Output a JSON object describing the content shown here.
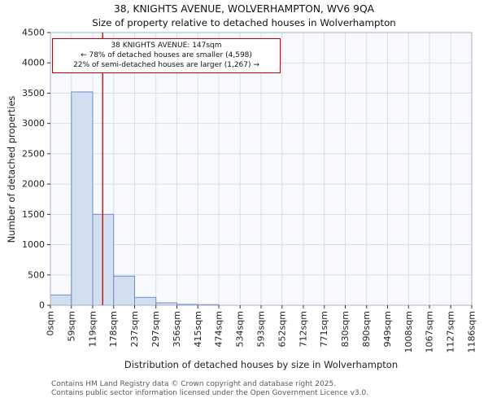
{
  "title_line1": "38, KNIGHTS AVENUE, WOLVERHAMPTON, WV6 9QA",
  "title_line2": "Size of property relative to detached houses in Wolverhampton",
  "annotation": {
    "line1": "38 KNIGHTS AVENUE: 147sqm",
    "line2": "← 78% of detached houses are smaller (4,598)",
    "line3": "22% of semi-detached houses are larger (1,267) →"
  },
  "footer_line1": "Contains HM Land Registry data © Crown copyright and database right 2025.",
  "footer_line2": "Contains public sector information licensed under the Open Government Licence v3.0.",
  "chart_data": {
    "type": "bar",
    "title": "38, KNIGHTS AVENUE, WOLVERHAMPTON, WV6 9QA — Size of property relative to detached houses in Wolverhampton",
    "xlabel": "Distribution of detached houses by size in Wolverhampton",
    "ylabel": "Number of detached properties",
    "bin_edges_sqm": [
      0,
      59,
      119,
      178,
      237,
      297,
      356,
      415,
      474,
      534,
      593,
      652,
      712,
      771,
      830,
      890,
      949,
      1008,
      1067,
      1127,
      1186
    ],
    "tick_labels": [
      "0sqm",
      "59sqm",
      "119sqm",
      "178sqm",
      "237sqm",
      "297sqm",
      "356sqm",
      "415sqm",
      "474sqm",
      "534sqm",
      "593sqm",
      "652sqm",
      "712sqm",
      "771sqm",
      "830sqm",
      "890sqm",
      "949sqm",
      "1008sqm",
      "1067sqm",
      "1127sqm",
      "1186sqm"
    ],
    "values": [
      170,
      3520,
      1500,
      480,
      130,
      40,
      15,
      10,
      0,
      0,
      0,
      0,
      0,
      0,
      0,
      0,
      0,
      0,
      0,
      0
    ],
    "ylim": [
      0,
      4500
    ],
    "ytick_step": 500,
    "marker_sqm": 147,
    "grid": "on",
    "colors": {
      "bar_fill": "#d2dff0",
      "bar_border": "#6a8fc5",
      "marker_line": "#c00000",
      "annotation_border": "#c00000",
      "grid": "#d8deed",
      "plot_bg": "#f8f9fc",
      "plot_border": "#aab2c4"
    }
  }
}
